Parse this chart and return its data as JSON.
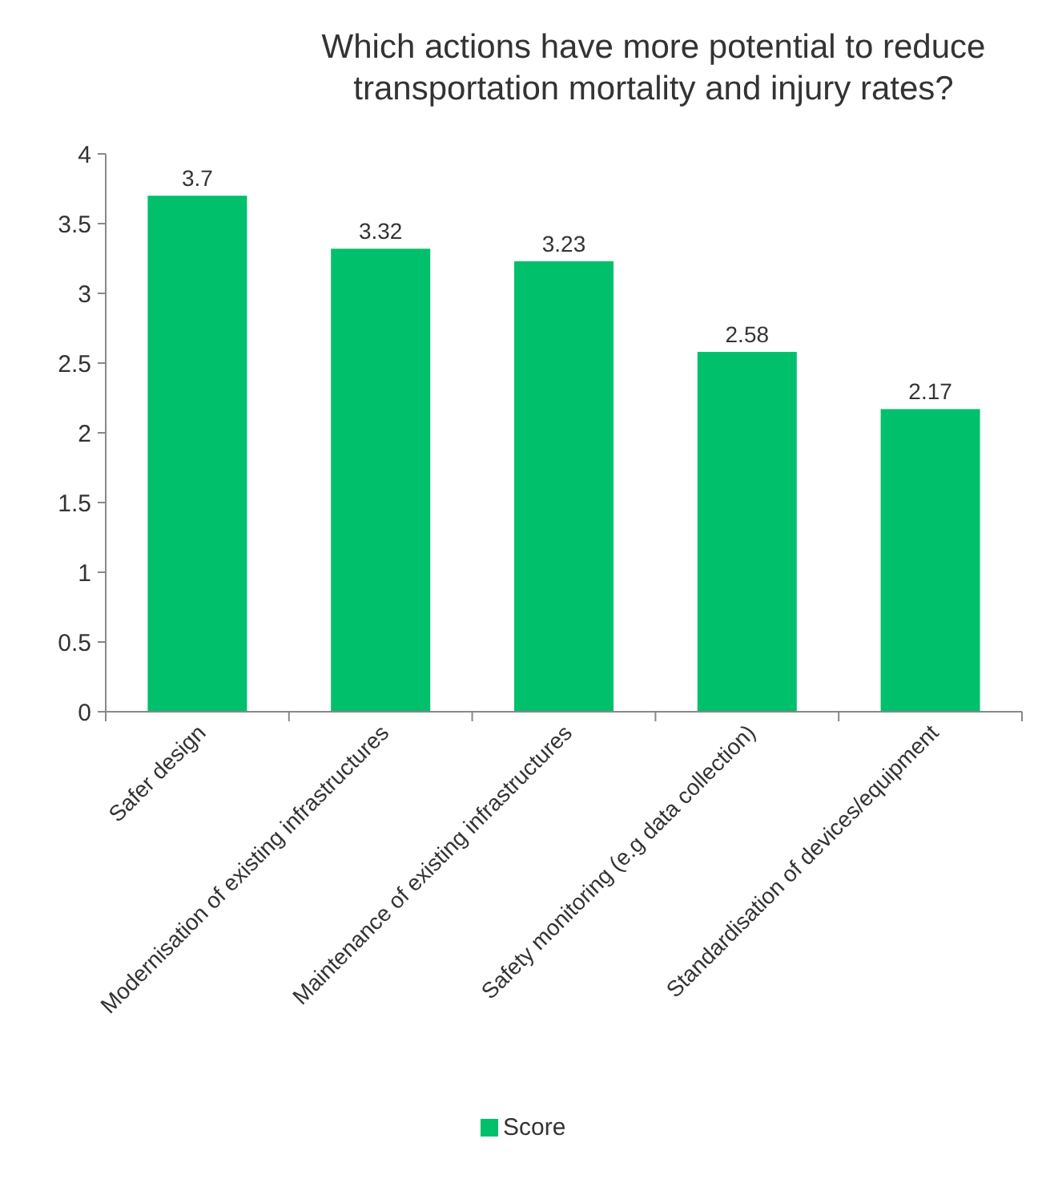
{
  "chart_data": {
    "type": "bar",
    "title": "Which actions have more potential to reduce transportation mortality and injury rates?",
    "categories": [
      "Safer design",
      "Modernisation of existing infrastructures",
      "Maintenance of existing infrastructures",
      "Safety monitoring (e.g data collection)",
      "Standardisation of devices/equipment"
    ],
    "series": [
      {
        "name": "Score",
        "color": "#00c06b",
        "values": [
          3.7,
          3.32,
          3.23,
          2.58,
          2.17
        ]
      }
    ],
    "ylim": [
      0,
      4
    ],
    "yticks": [
      0,
      0.5,
      1,
      1.5,
      2,
      2.5,
      3,
      3.5,
      4
    ],
    "data_labels": true,
    "grid": false,
    "legend": "bottom"
  }
}
